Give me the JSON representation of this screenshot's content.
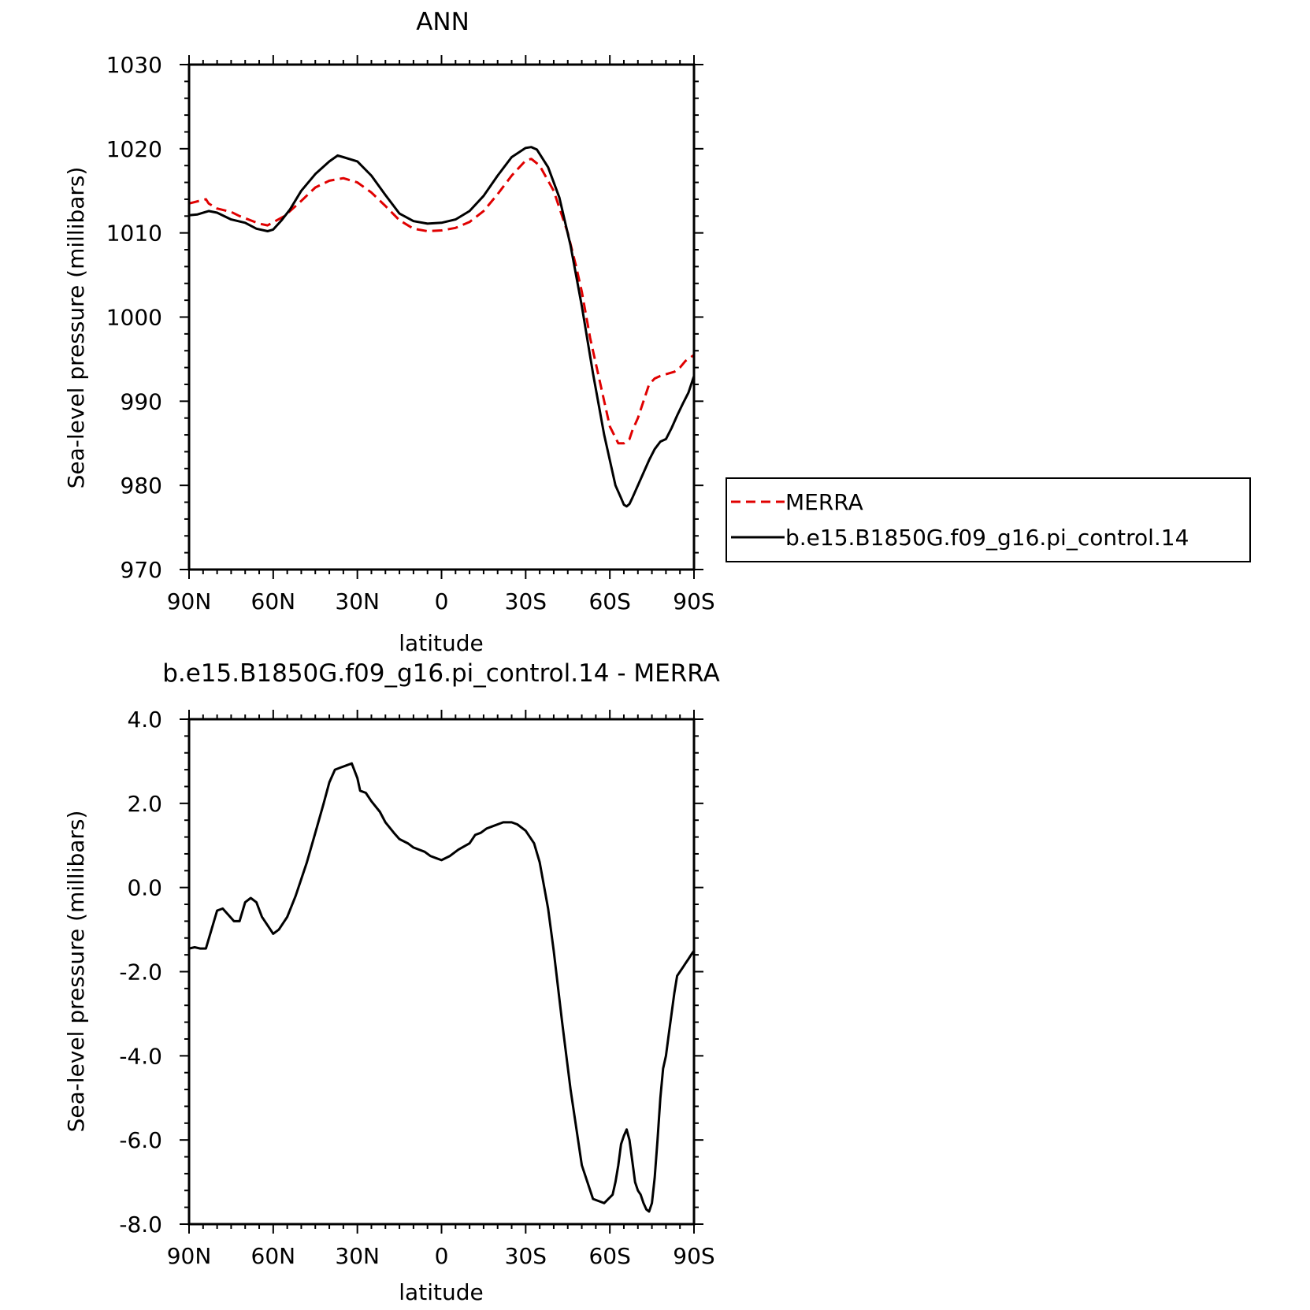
{
  "chart_data": [
    {
      "type": "line",
      "title": "ANN",
      "xlabel": "latitude",
      "ylabel": "Sea-level pressure (millibars)",
      "x_ticks": [
        "90N",
        "60N",
        "30N",
        "0",
        "30S",
        "60S",
        "90S"
      ],
      "x_tick_values": [
        90,
        60,
        30,
        0,
        -30,
        -60,
        -90
      ],
      "xlim": [
        90,
        -90
      ],
      "ylim": [
        970,
        1030
      ],
      "y_ticks": [
        "970",
        "980",
        "990",
        "1000",
        "1010",
        "1020",
        "1030"
      ],
      "y_tick_values": [
        970,
        980,
        990,
        1000,
        1010,
        1020,
        1030
      ],
      "grid": false,
      "legend_position": "right",
      "series": [
        {
          "name": "MERRA",
          "color": "#e00000",
          "dash": "dashed",
          "x": [
            90,
            84,
            83,
            80,
            75,
            72,
            65,
            62,
            56,
            50,
            45,
            40,
            35,
            30,
            25,
            20,
            15,
            10,
            5,
            0,
            -5,
            -10,
            -15,
            -20,
            -25,
            -30,
            -32,
            -35,
            -40,
            -45,
            -48,
            -50,
            -53,
            -56,
            -58,
            -60,
            -63,
            -65,
            -67,
            -68,
            -70,
            -72,
            -74,
            -76,
            -78,
            -80,
            -83,
            -85,
            -87,
            -90
          ],
          "y": [
            1013.5,
            1014,
            1013.5,
            1012.9,
            1012.5,
            1012,
            1011.1,
            1010.9,
            1012,
            1013.8,
            1015.4,
            1016.2,
            1016.5,
            1016,
            1014.8,
            1013.2,
            1011.5,
            1010.5,
            1010.2,
            1010.3,
            1010.6,
            1011.3,
            1012.6,
            1014.6,
            1016.8,
            1018.6,
            1018.8,
            1018,
            1015,
            1010,
            1006,
            1003,
            997.5,
            993,
            990,
            987,
            985,
            985,
            985.5,
            986.5,
            988,
            990,
            992,
            992.7,
            993,
            993.2,
            993.5,
            994,
            994.8,
            995.5
          ]
        },
        {
          "name": "b.e15.B1850G.f09_g16.pi_control.14",
          "color": "#000000",
          "dash": "solid",
          "x": [
            90,
            87,
            83,
            80,
            75,
            70,
            66,
            62,
            60,
            57,
            54,
            50,
            45,
            40,
            37,
            35,
            30,
            25,
            20,
            15,
            10,
            5,
            0,
            -5,
            -10,
            -15,
            -20,
            -25,
            -30,
            -32,
            -34,
            -38,
            -42,
            -46,
            -50,
            -54,
            -58,
            -62,
            -64,
            -65,
            -66,
            -67,
            -68,
            -70,
            -72,
            -74,
            -76,
            -78,
            -80,
            -82,
            -84,
            -86,
            -88,
            -90
          ],
          "y": [
            1012.1,
            1012.2,
            1012.6,
            1012.4,
            1011.6,
            1011.2,
            1010.5,
            1010.2,
            1010.4,
            1011.5,
            1012.8,
            1015,
            1017,
            1018.5,
            1019.2,
            1019,
            1018.5,
            1016.8,
            1014.5,
            1012.3,
            1011.4,
            1011.1,
            1011.2,
            1011.6,
            1012.6,
            1014.4,
            1016.8,
            1019,
            1020.1,
            1020.2,
            1019.9,
            1017.8,
            1014.2,
            1008.5,
            1001.3,
            993.3,
            986,
            980,
            978.5,
            977.7,
            977.5,
            977.8,
            978.5,
            980,
            981.5,
            983,
            984.3,
            985.2,
            985.5,
            986.8,
            988.3,
            989.7,
            991,
            993
          ]
        }
      ]
    },
    {
      "type": "line",
      "title": "b.e15.B1850G.f09_g16.pi_control.14 - MERRA",
      "xlabel": "latitude",
      "ylabel": "Sea-level pressure (millibars)",
      "x_ticks": [
        "90N",
        "60N",
        "30N",
        "0",
        "30S",
        "60S",
        "90S"
      ],
      "x_tick_values": [
        90,
        60,
        30,
        0,
        -30,
        -60,
        -90
      ],
      "xlim": [
        90,
        -90
      ],
      "ylim": [
        -8,
        4
      ],
      "y_ticks": [
        "-8.0",
        "-6.0",
        "-4.0",
        "-2.0",
        "0.0",
        "2.0",
        "4.0"
      ],
      "y_tick_values": [
        -8,
        -6,
        -4,
        -2,
        0,
        2,
        4
      ],
      "grid": false,
      "series": [
        {
          "color": "#000000",
          "x": [
            90,
            88,
            86,
            84,
            82,
            80,
            78,
            76,
            74,
            72,
            70,
            68,
            66,
            64,
            62,
            60,
            58,
            55,
            52,
            48,
            45,
            42,
            40,
            38,
            36,
            34,
            32,
            30,
            29,
            27,
            25,
            22,
            20,
            17,
            15,
            12,
            10,
            6,
            4,
            2,
            0,
            -3,
            -6,
            -10,
            -12,
            -14,
            -16,
            -18,
            -22,
            -25,
            -27,
            -30,
            -33,
            -35,
            -38,
            -40,
            -43,
            -46,
            -50,
            -54,
            -58,
            -61,
            -62,
            -63,
            -64,
            -65,
            -66,
            -67,
            -68,
            -69,
            -70,
            -71,
            -72,
            -73,
            -74,
            -75,
            -76,
            -77,
            -78,
            -79,
            -80,
            -81,
            -82,
            -83,
            -84,
            -85,
            -86,
            -87,
            -88,
            -89,
            -90
          ],
          "y": [
            -1.45,
            -1.42,
            -1.45,
            -1.45,
            -1.0,
            -0.55,
            -0.5,
            -0.65,
            -0.8,
            -0.8,
            -0.35,
            -0.25,
            -0.35,
            -0.7,
            -0.9,
            -1.1,
            -1.0,
            -0.7,
            -0.2,
            0.6,
            1.3,
            2.0,
            2.5,
            2.8,
            2.85,
            2.9,
            2.95,
            2.6,
            2.3,
            2.25,
            2.05,
            1.8,
            1.55,
            1.3,
            1.15,
            1.05,
            0.95,
            0.85,
            0.75,
            0.7,
            0.65,
            0.75,
            0.9,
            1.05,
            1.25,
            1.3,
            1.4,
            1.45,
            1.55,
            1.55,
            1.5,
            1.35,
            1.05,
            0.6,
            -0.5,
            -1.5,
            -3.2,
            -4.8,
            -6.6,
            -7.4,
            -7.5,
            -7.3,
            -7.0,
            -6.6,
            -6.1,
            -5.9,
            -5.75,
            -6.0,
            -6.5,
            -7.0,
            -7.2,
            -7.3,
            -7.5,
            -7.65,
            -7.7,
            -7.5,
            -6.9,
            -6.0,
            -5.0,
            -4.3,
            -4.0,
            -3.5,
            -3.0,
            -2.5,
            -2.1,
            -2.0,
            -1.9,
            -1.8,
            -1.7,
            -1.6,
            -1.5
          ]
        }
      ]
    }
  ]
}
